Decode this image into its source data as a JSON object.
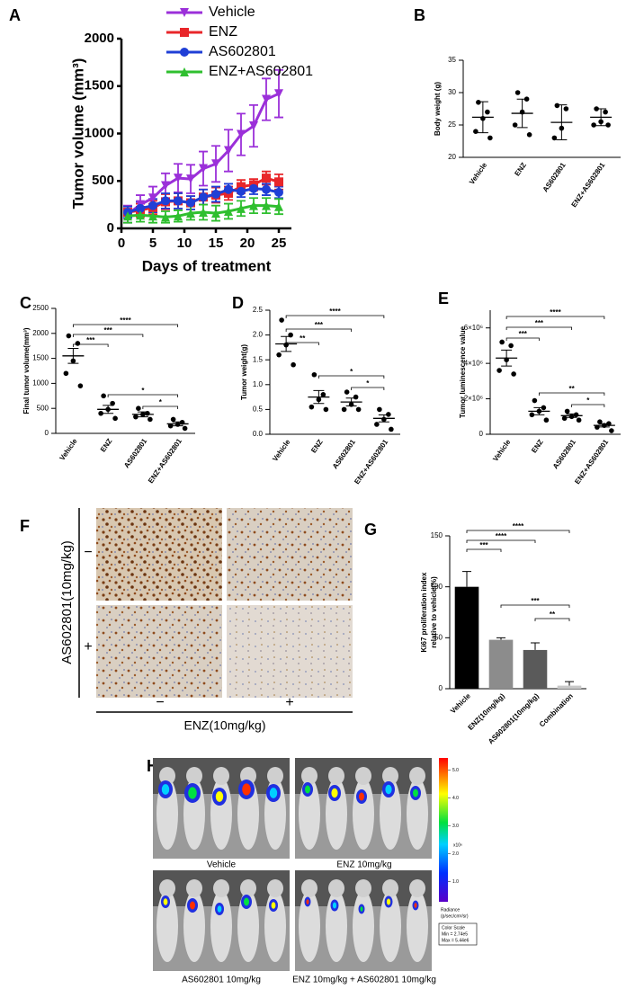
{
  "chart_data": [
    {
      "panel": "A",
      "type": "line",
      "y_label": "Tumor volume (mm³)",
      "x_label": "Days of treatment",
      "x": [
        1,
        3,
        5,
        7,
        9,
        11,
        13,
        15,
        17,
        19,
        21,
        23,
        25
      ],
      "xlim": [
        0,
        27
      ],
      "xticks": [
        0,
        5,
        10,
        15,
        20,
        25
      ],
      "ylim": [
        0,
        2000
      ],
      "yticks": [
        0,
        500,
        1000,
        1500,
        2000
      ],
      "legend": "upper left",
      "series": [
        {
          "name": "Vehicle",
          "color": "#9b30d9",
          "marker": "triangle-down",
          "values": [
            150,
            250,
            320,
            450,
            530,
            520,
            630,
            680,
            820,
            990,
            1080,
            1360,
            1420
          ],
          "errors": [
            90,
            100,
            120,
            130,
            150,
            150,
            180,
            190,
            220,
            220,
            220,
            220,
            250
          ]
        },
        {
          "name": "ENZ",
          "color": "#e8262a",
          "marker": "square",
          "values": [
            170,
            190,
            220,
            280,
            290,
            270,
            330,
            350,
            370,
            440,
            460,
            530,
            490
          ],
          "errors": [
            60,
            70,
            70,
            80,
            80,
            70,
            80,
            80,
            70,
            70,
            60,
            70,
            80
          ]
        },
        {
          "name": "AS602801",
          "color": "#1f3fd6",
          "marker": "circle",
          "values": [
            170,
            210,
            240,
            290,
            290,
            270,
            330,
            360,
            410,
            390,
            420,
            410,
            380
          ],
          "errors": [
            60,
            70,
            70,
            80,
            80,
            70,
            80,
            80,
            60,
            60,
            60,
            60,
            60
          ]
        },
        {
          "name": "ENZ+AS602801",
          "color": "#2fbf2f",
          "marker": "triangle-up",
          "values": [
            130,
            140,
            130,
            120,
            130,
            160,
            170,
            160,
            180,
            210,
            240,
            240,
            230
          ],
          "errors": [
            70,
            70,
            70,
            60,
            60,
            70,
            80,
            80,
            80,
            80,
            80,
            80,
            80
          ]
        }
      ]
    },
    {
      "panel": "B",
      "type": "dot",
      "y_label": "Body weight (g)",
      "categories": [
        "Vehicle",
        "ENZ",
        "AS602801",
        "ENZ+AS602801"
      ],
      "points": [
        [
          28.5,
          27,
          26,
          24,
          23
        ],
        [
          30,
          29,
          27,
          25,
          23.5
        ],
        [
          28,
          27.5,
          24.5,
          23
        ],
        [
          27.5,
          27,
          25.5,
          25,
          25
        ]
      ],
      "means": [
        26.2,
        26.8,
        25.4,
        26.2
      ],
      "errors": [
        2.4,
        2.2,
        2.7,
        1.3
      ],
      "ylim": [
        20,
        35
      ],
      "yticks": [
        20,
        25,
        30,
        35
      ],
      "comparisons": []
    },
    {
      "panel": "C",
      "type": "dot",
      "y_label": "Final tumor volume(mm³)",
      "categories": [
        "Vehicle",
        "ENZ",
        "AS602801",
        "ENZ+AS602801"
      ],
      "points": [
        [
          1950,
          1800,
          1450,
          1200,
          950
        ],
        [
          750,
          600,
          480,
          400,
          300
        ],
        [
          500,
          400,
          380,
          330,
          280
        ],
        [
          280,
          220,
          180,
          150,
          100
        ]
      ],
      "means": [
        1550,
        480,
        380,
        190
      ],
      "errors": [
        150,
        80,
        50,
        40
      ],
      "ylim": [
        0,
        2500
      ],
      "yticks": [
        0,
        500,
        1000,
        1500,
        2000,
        2500
      ],
      "comparisons": [
        {
          "groups": [
            0,
            1
          ],
          "label": "***"
        },
        {
          "groups": [
            0,
            2
          ],
          "label": "***"
        },
        {
          "groups": [
            0,
            3
          ],
          "label": "****"
        },
        {
          "groups": [
            1,
            3
          ],
          "label": "*"
        },
        {
          "groups": [
            2,
            3
          ],
          "label": "*"
        }
      ]
    },
    {
      "panel": "D",
      "type": "dot",
      "y_label": "Tumor weight(g)",
      "categories": [
        "Vehicle",
        "ENZ",
        "AS602801",
        "ENZ+AS602801"
      ],
      "points": [
        [
          2.3,
          2.0,
          1.8,
          1.6,
          1.4
        ],
        [
          1.2,
          0.8,
          0.7,
          0.55,
          0.5
        ],
        [
          0.85,
          0.75,
          0.6,
          0.5,
          0.5
        ],
        [
          0.5,
          0.4,
          0.3,
          0.2,
          0.1
        ]
      ],
      "means": [
        1.82,
        0.75,
        0.65,
        0.32
      ],
      "errors": [
        0.15,
        0.13,
        0.08,
        0.07
      ],
      "ylim": [
        0,
        2.5
      ],
      "yticks": [
        {
          "value": 0,
          "label": "0.0"
        },
        0.5,
        {
          "value": 1,
          "label": "1.0"
        },
        1.5,
        {
          "value": 2,
          "label": "2.0"
        },
        2.5
      ],
      "comparisons": [
        {
          "groups": [
            0,
            1
          ],
          "label": "**"
        },
        {
          "groups": [
            0,
            2
          ],
          "label": "***"
        },
        {
          "groups": [
            0,
            3
          ],
          "label": "****"
        },
        {
          "groups": [
            1,
            3
          ],
          "label": "*"
        },
        {
          "groups": [
            2,
            3
          ],
          "label": "*"
        }
      ]
    },
    {
      "panel": "E",
      "type": "dot",
      "y_label": "Tumor luminescence value",
      "categories": [
        "Vehicle",
        "ENZ",
        "AS602801",
        "ENZ+AS602801"
      ],
      "points": [
        [
          5200000,
          5000000,
          4200000,
          3600000,
          3400000
        ],
        [
          1900000,
          1500000,
          1300000,
          1100000,
          800000
        ],
        [
          1300000,
          1100000,
          1000000,
          900000,
          800000
        ],
        [
          700000,
          600000,
          500000,
          400000,
          200000
        ]
      ],
      "means": [
        4300000,
        1300000,
        1050000,
        500000
      ],
      "errors": [
        450000,
        200000,
        100000,
        90000
      ],
      "ylim": [
        0,
        7000000
      ],
      "yticks": [
        0,
        {
          "value": 2000000,
          "label": "2×10⁶"
        },
        {
          "value": 4000000,
          "label": "4×10⁶"
        },
        {
          "value": 6000000,
          "label": "6×10⁶"
        }
      ],
      "comparisons": [
        {
          "groups": [
            0,
            1
          ],
          "label": "***"
        },
        {
          "groups": [
            0,
            2
          ],
          "label": "***"
        },
        {
          "groups": [
            0,
            3
          ],
          "label": "****"
        },
        {
          "groups": [
            1,
            3
          ],
          "label": "**"
        },
        {
          "groups": [
            2,
            3
          ],
          "label": "*"
        }
      ]
    },
    {
      "panel": "G",
      "type": "bar",
      "y_label": [
        "Ki67 proliferation index",
        "relative to vehicle(%)"
      ],
      "categories": [
        "Vehicle",
        "ENZ(10mg/kg)",
        "AS602801(10mg/kg)",
        "Combination"
      ],
      "values": [
        100,
        48,
        38,
        3
      ],
      "errors": [
        15,
        2,
        7,
        4
      ],
      "colors": [
        "#000000",
        "#8c8c8c",
        "#5a5a5a",
        "#c8c8c8"
      ],
      "ylim": [
        0,
        150
      ],
      "yticks": [
        0,
        50,
        100,
        150
      ],
      "comparisons": [
        {
          "groups": [
            0,
            1
          ],
          "label": "***"
        },
        {
          "groups": [
            0,
            2
          ],
          "label": "****"
        },
        {
          "groups": [
            0,
            3
          ],
          "label": "****"
        },
        {
          "groups": [
            1,
            3
          ],
          "label": "***"
        },
        {
          "groups": [
            2,
            3
          ],
          "label": "**"
        }
      ]
    }
  ],
  "figures": {
    "F": {
      "panel": "F",
      "row_title": "AS602801(10mg/kg)",
      "row_labels": [
        "−",
        "+"
      ],
      "column_labels": [
        "−",
        "+"
      ],
      "column_title": "ENZ(10mg/kg)"
    },
    "H": {
      "panel": "H",
      "captions": [
        "Vehicle",
        "ENZ 10mg/kg",
        "AS602801 10mg/kg",
        "ENZ 10mg/kg + AS602801 10mg/kg"
      ],
      "color_scale": {
        "lim": [
          0.274,
          5.44
        ],
        "ticks": [
          {
            "value": 1,
            "label": "1.0"
          },
          {
            "value": 2,
            "label": "2.0"
          },
          {
            "value": 3,
            "label": "3.0"
          },
          {
            "value": 4,
            "label": "4.0"
          },
          {
            "value": 5,
            "label": "5.0"
          }
        ],
        "unit": "x10⁶",
        "title": [
          "Radiance",
          "(p/sec/cm²/sr)"
        ],
        "box": [
          "Color Scale",
          "Min = 2.74e5",
          "Max = 5.44e6"
        ]
      }
    }
  }
}
